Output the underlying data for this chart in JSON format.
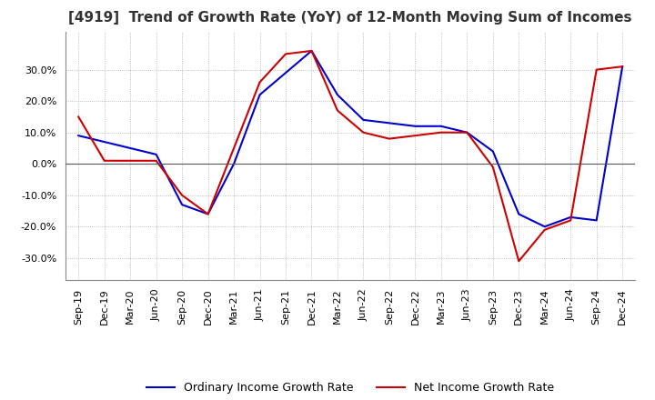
{
  "title": "[4919]  Trend of Growth Rate (YoY) of 12-Month Moving Sum of Incomes",
  "title_fontsize": 11,
  "ylim": [
    -0.37,
    0.42
  ],
  "yticks": [
    -0.3,
    -0.2,
    -0.1,
    0.0,
    0.1,
    0.2,
    0.3
  ],
  "background_color": "#ffffff",
  "plot_bg_color": "#ffffff",
  "grid_color": "#aaaaaa",
  "ordinary_color": "#0000cc",
  "net_color": "#cc0000",
  "legend_labels": [
    "Ordinary Income Growth Rate",
    "Net Income Growth Rate"
  ],
  "x_labels": [
    "Sep-19",
    "Dec-19",
    "Mar-20",
    "Jun-20",
    "Sep-20",
    "Dec-20",
    "Mar-21",
    "Jun-21",
    "Sep-21",
    "Dec-21",
    "Mar-22",
    "Jun-22",
    "Sep-22",
    "Dec-22",
    "Mar-23",
    "Jun-23",
    "Sep-23",
    "Dec-23",
    "Mar-24",
    "Jun-24",
    "Sep-24",
    "Dec-24"
  ],
  "ordinary_income": [
    0.09,
    0.07,
    0.05,
    0.03,
    -0.13,
    -0.16,
    0.0,
    0.22,
    0.29,
    0.36,
    0.22,
    0.14,
    0.13,
    0.12,
    0.12,
    0.1,
    0.04,
    -0.16,
    -0.2,
    -0.17,
    -0.18,
    0.31
  ],
  "net_income": [
    0.15,
    0.01,
    0.01,
    0.01,
    -0.1,
    -0.16,
    0.05,
    0.26,
    0.35,
    0.36,
    0.17,
    0.1,
    0.08,
    0.09,
    0.1,
    0.1,
    -0.01,
    -0.31,
    -0.21,
    -0.18,
    0.3,
    0.31
  ]
}
